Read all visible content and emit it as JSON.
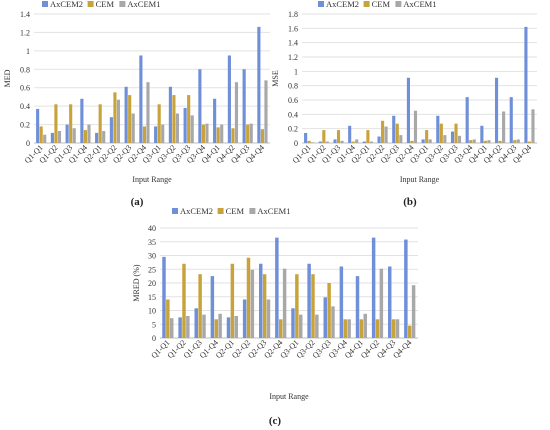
{
  "figure": {
    "panels": [
      "(a)",
      "(b)",
      "(c)"
    ]
  },
  "chart_data": [
    {
      "type": "bar",
      "panel_label": "(a)",
      "xlabel": "Input Range",
      "ylabel": "MED",
      "ylim": [
        0,
        1.4
      ],
      "yticks": [
        "0",
        "0.2",
        "0.4",
        "0.6",
        "0.8",
        "1",
        "1.2",
        "1.4"
      ],
      "grid": true,
      "legend": "top-left",
      "categories": [
        "Q1-Q1",
        "Q1-Q2",
        "Q1-Q3",
        "Q1-Q4",
        "Q2-Q1",
        "Q2-Q2",
        "Q2-Q3",
        "Q2-Q4",
        "Q3-Q1",
        "Q3-Q2",
        "Q3-Q3",
        "Q3-Q4",
        "Q4-Q1",
        "Q4-Q2",
        "Q4-Q3",
        "Q4-Q4"
      ],
      "series": [
        {
          "name": "AxCEM2",
          "color": "#6f8fd8",
          "values": [
            0.37,
            0.11,
            0.2,
            0.48,
            0.11,
            0.28,
            0.61,
            0.95,
            0.18,
            0.61,
            0.38,
            0.8,
            0.48,
            0.95,
            0.8,
            1.26
          ]
        },
        {
          "name": "CEM",
          "color": "#c8a33c",
          "values": [
            0.18,
            0.42,
            0.42,
            0.14,
            0.42,
            0.55,
            0.52,
            0.18,
            0.42,
            0.52,
            0.52,
            0.2,
            0.17,
            0.16,
            0.2,
            0.15
          ]
        },
        {
          "name": "AxCEM1",
          "color": "#a8a8a8",
          "values": [
            0.09,
            0.13,
            0.16,
            0.2,
            0.13,
            0.47,
            0.32,
            0.66,
            0.2,
            0.32,
            0.3,
            0.21,
            0.2,
            0.66,
            0.21,
            0.68
          ]
        }
      ]
    },
    {
      "type": "bar",
      "panel_label": "(b)",
      "xlabel": "Input Range",
      "ylabel": "MSE",
      "ylim": [
        0,
        1.8
      ],
      "yticks": [
        "0",
        "0.2",
        "0.4",
        "0.6",
        "0.8",
        "1",
        "1.2",
        "1.4",
        "1.6",
        "1.8"
      ],
      "grid": true,
      "legend": "top-left",
      "categories": [
        "Q1-Q1",
        "Q1-Q2",
        "Q1-Q3",
        "Q1-Q4",
        "Q2-Q1",
        "Q2-Q2",
        "Q2-Q3",
        "Q2-Q4",
        "Q3-Q1",
        "Q3-Q2",
        "Q3-Q3",
        "Q3-Q4",
        "Q4-Q1",
        "Q4-Q2",
        "Q4-Q3",
        "Q4-Q4"
      ],
      "series": [
        {
          "name": "AxCEM2",
          "color": "#6f8fd8",
          "values": [
            0.14,
            0.02,
            0.05,
            0.24,
            0.02,
            0.09,
            0.38,
            0.91,
            0.05,
            0.38,
            0.16,
            0.64,
            0.24,
            0.91,
            0.64,
            1.62
          ]
        },
        {
          "name": "CEM",
          "color": "#c8a33c",
          "values": [
            0.03,
            0.18,
            0.18,
            0.02,
            0.18,
            0.31,
            0.27,
            0.03,
            0.18,
            0.27,
            0.27,
            0.04,
            0.03,
            0.03,
            0.04,
            0.02
          ]
        },
        {
          "name": "AxCEM1",
          "color": "#a8a8a8",
          "values": [
            0.01,
            0.02,
            0.03,
            0.05,
            0.02,
            0.23,
            0.11,
            0.45,
            0.05,
            0.11,
            0.1,
            0.05,
            0.04,
            0.44,
            0.05,
            0.47
          ]
        }
      ]
    },
    {
      "type": "bar",
      "panel_label": "(c)",
      "xlabel": "Input Range",
      "ylabel": "MRED (%)",
      "ylim": [
        0,
        40
      ],
      "yticks": [
        "0",
        "5",
        "10",
        "15",
        "20",
        "25",
        "30",
        "35",
        "40"
      ],
      "grid": true,
      "legend": "top-left",
      "categories": [
        "Q1-Q1",
        "Q1-Q2",
        "Q1-Q3",
        "Q1-Q4",
        "Q2-Q1",
        "Q2-Q2",
        "Q2-Q3",
        "Q2-Q4",
        "Q3-Q1",
        "Q3-Q2",
        "Q3-Q3",
        "Q3-Q4",
        "Q4-Q1",
        "Q4-Q2",
        "Q4-Q3",
        "Q4-Q4"
      ],
      "series": [
        {
          "name": "AxCEM2",
          "color": "#6f8fd8",
          "values": [
            29.5,
            7.5,
            10.8,
            22.5,
            7.5,
            14.0,
            27.0,
            36.5,
            10.8,
            27.0,
            14.8,
            26.0,
            22.5,
            36.5,
            26.0,
            35.8
          ]
        },
        {
          "name": "CEM",
          "color": "#c8a33c",
          "values": [
            14.0,
            27.0,
            23.2,
            6.8,
            27.0,
            29.2,
            23.2,
            6.8,
            23.2,
            23.2,
            20.0,
            6.8,
            6.8,
            6.8,
            6.8,
            4.5
          ]
        },
        {
          "name": "AxCEM1",
          "color": "#a8a8a8",
          "values": [
            7.2,
            8.0,
            8.5,
            8.8,
            8.0,
            24.8,
            14.0,
            25.2,
            8.5,
            8.5,
            11.5,
            6.8,
            8.8,
            25.2,
            6.8,
            19.2
          ]
        }
      ]
    }
  ]
}
